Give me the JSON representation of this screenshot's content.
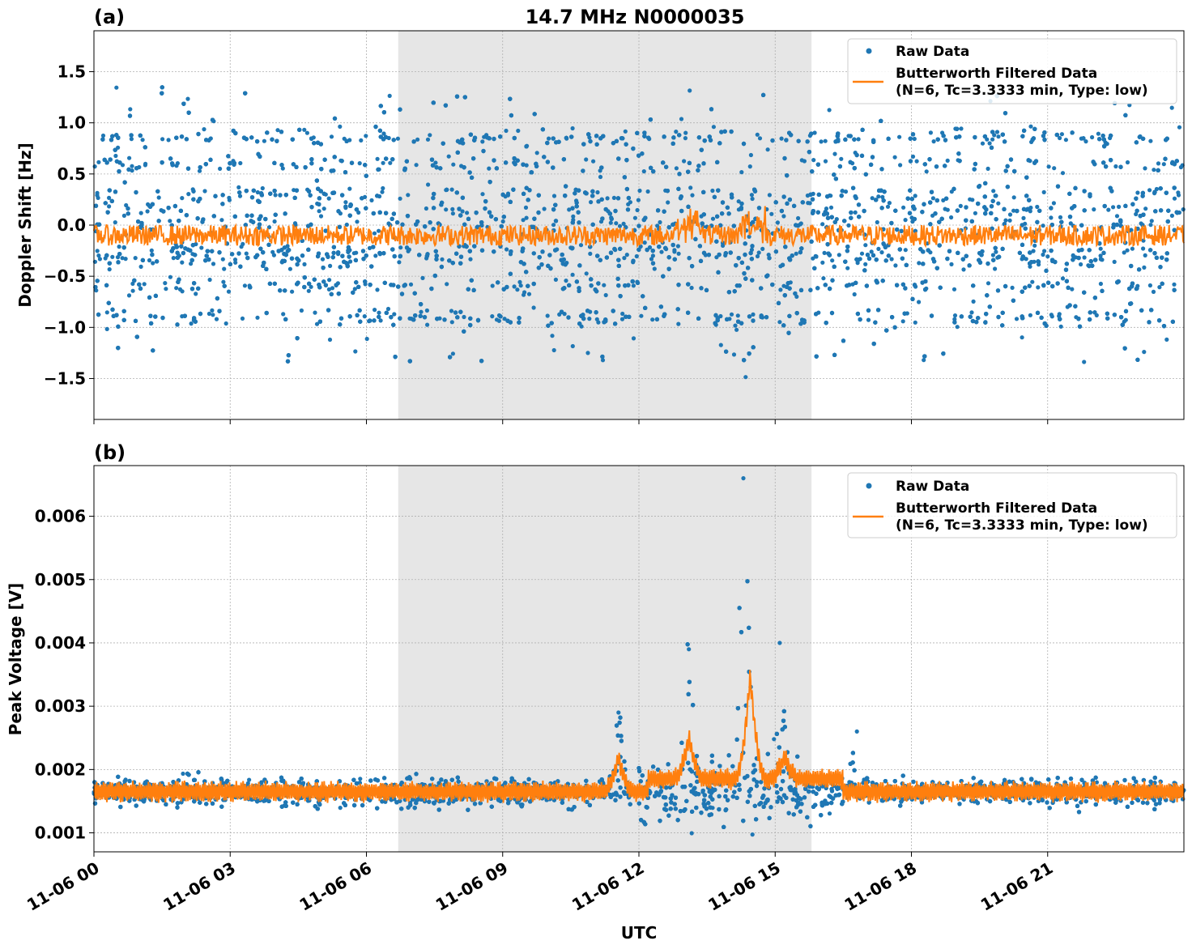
{
  "figure": {
    "title": "14.7 MHz N0000035",
    "xlabel": "UTC",
    "colors": {
      "raw": "#1f77b4",
      "filtered": "#ff7f0e",
      "shade": "#e6e6e6",
      "grid": "#b0b0b0"
    }
  },
  "chart_data": [
    {
      "type": "scatter",
      "panel_label": "(a)",
      "ylabel": "Doppler Shift [Hz]",
      "xlim": [
        "11-06 00:00",
        "11-06 24:00"
      ],
      "ylim": [
        -1.9,
        1.9
      ],
      "yticks": [
        -1.5,
        -1.0,
        -0.5,
        0.0,
        0.5,
        1.0,
        1.5
      ],
      "ytick_labels": [
        "−1.5",
        "−1.0",
        "−0.5",
        "0.0",
        "0.5",
        "1.0",
        "1.5"
      ],
      "xticks": [
        "11-06 00",
        "11-06 03",
        "11-06 06",
        "11-06 09",
        "11-06 12",
        "11-06 15",
        "11-06 18",
        "11-06 21"
      ],
      "show_xtick_labels": false,
      "grid": true,
      "legend_position": "top-right",
      "legend": [
        "Raw Data",
        "Butterworth Filtered Data",
        "(N=6, Tc=3.3333 min, Type: low)"
      ],
      "shaded_interval_utc_hours": [
        6.7,
        15.8
      ],
      "series": [
        {
          "name": "Raw Data",
          "kind": "points",
          "description_levels_hz": [
            -0.9,
            -0.6,
            -0.35,
            -0.25,
            0.0,
            0.15,
            0.3,
            0.6,
            0.85
          ],
          "spread_range_hz": [
            -1.7,
            1.75
          ]
        },
        {
          "name": "Butterworth Filtered Data",
          "kind": "line",
          "mean_hz": -0.1,
          "amplitude_hz": 0.1,
          "peak_utc_hours": [
            13.1,
            14.5
          ],
          "peak_value_hz": 0.17
        }
      ]
    },
    {
      "type": "scatter",
      "panel_label": "(b)",
      "ylabel": "Peak Voltage [V]",
      "xlim": [
        "11-06 00:00",
        "11-06 24:00"
      ],
      "ylim": [
        0.0007,
        0.0068
      ],
      "yticks": [
        0.001,
        0.002,
        0.003,
        0.004,
        0.005,
        0.006
      ],
      "ytick_labels": [
        "0.001",
        "0.002",
        "0.003",
        "0.004",
        "0.005",
        "0.006"
      ],
      "xticks": [
        "11-06 00",
        "11-06 03",
        "11-06 06",
        "11-06 09",
        "11-06 12",
        "11-06 15",
        "11-06 18",
        "11-06 21"
      ],
      "show_xtick_labels": true,
      "grid": true,
      "legend_position": "top-right",
      "legend": [
        "Raw Data",
        "Butterworth Filtered Data",
        "(N=6, Tc=3.3333 min, Type: low)"
      ],
      "shaded_interval_utc_hours": [
        6.7,
        15.8
      ],
      "series": [
        {
          "name": "Raw Data",
          "kind": "points",
          "baseline_v": 0.00165,
          "baseline_spread_v": 0.0003,
          "events": [
            {
              "utc_hour": 11.55,
              "peak_v": 0.0029
            },
            {
              "utc_hour": 13.1,
              "peak_v": 0.0039
            },
            {
              "utc_hour": 14.3,
              "peak_v": 0.0066
            },
            {
              "utc_hour": 15.1,
              "peak_v": 0.004
            },
            {
              "utc_hour": 16.8,
              "peak_v": 0.0026
            }
          ]
        },
        {
          "name": "Butterworth Filtered Data",
          "kind": "line",
          "baseline_v": 0.00165,
          "oscillation_amplitude_v": 0.00015,
          "events": [
            {
              "utc_hour": 11.55,
              "peak_v": 0.0022
            },
            {
              "utc_hour": 13.1,
              "peak_v": 0.0023
            },
            {
              "utc_hour": 14.45,
              "peak_v": 0.0033
            },
            {
              "utc_hour": 15.2,
              "peak_v": 0.002
            }
          ]
        }
      ]
    }
  ]
}
